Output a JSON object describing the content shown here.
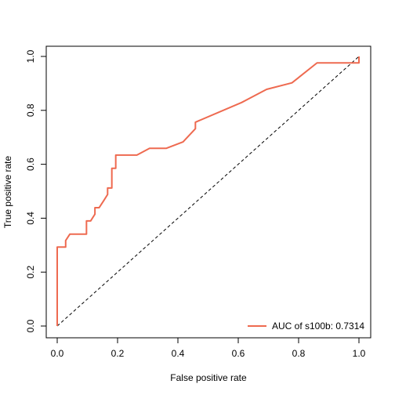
{
  "chart_data": {
    "type": "line",
    "title": "",
    "xlabel": "False positive rate",
    "ylabel": "True positive rate",
    "xlim": [
      0,
      1
    ],
    "ylim": [
      0,
      1
    ],
    "x_ticks": [
      "0.0",
      "0.2",
      "0.4",
      "0.6",
      "0.8",
      "1.0"
    ],
    "y_ticks": [
      "0.0",
      "0.2",
      "0.4",
      "0.6",
      "0.8",
      "1.0"
    ],
    "grid": false,
    "legend_position": "bottom-right",
    "series": [
      {
        "name": "AUC of s100b: 0.7314",
        "color": "#EE6A50",
        "x": [
          0,
          0,
          0.028,
          0.028,
          0.042,
          0.097,
          0.097,
          0.111,
          0.125,
          0.125,
          0.139,
          0.153,
          0.167,
          0.167,
          0.181,
          0.181,
          0.194,
          0.194,
          0.264,
          0.306,
          0.361,
          0.417,
          0.458,
          0.458,
          0.611,
          0.694,
          0.778,
          0.861,
          0.972,
          1.0,
          1.0
        ],
        "y": [
          0,
          0.293,
          0.293,
          0.317,
          0.341,
          0.341,
          0.39,
          0.39,
          0.415,
          0.439,
          0.439,
          0.463,
          0.488,
          0.512,
          0.512,
          0.585,
          0.585,
          0.634,
          0.634,
          0.659,
          0.659,
          0.683,
          0.732,
          0.756,
          0.829,
          0.878,
          0.902,
          0.976,
          0.976,
          0.976,
          1.0
        ]
      },
      {
        "name": "",
        "color": "#000000",
        "style": "dashed",
        "x": [
          0,
          1
        ],
        "y": [
          0,
          1
        ]
      }
    ]
  }
}
